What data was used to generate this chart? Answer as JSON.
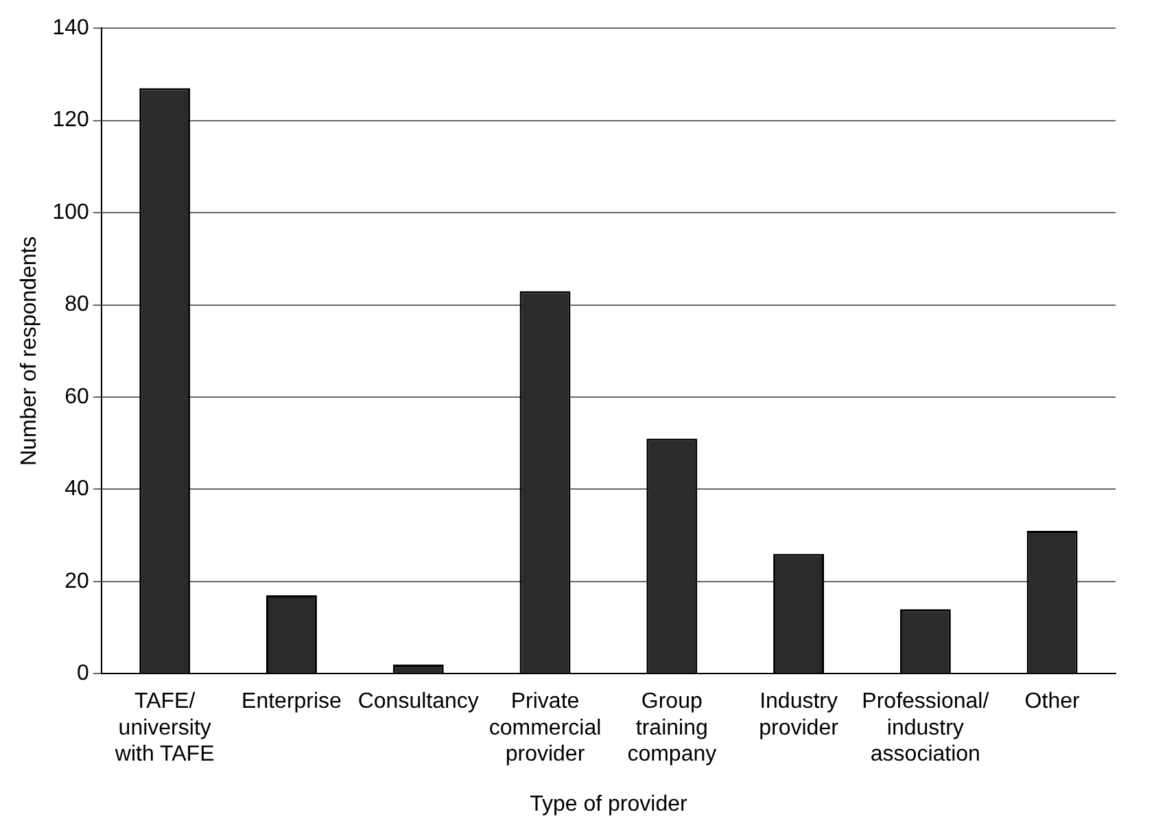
{
  "chart_data": {
    "type": "bar",
    "xlabel": "Type of provider",
    "ylabel": "Number of respondents",
    "categories": [
      "TAFE/ university with TAFE",
      "Enterprise",
      "Consultancy",
      "Private commercial provider",
      "Group training company",
      "Industry provider",
      "Professional/ industry association",
      "Other"
    ],
    "values": [
      127,
      17,
      2,
      83,
      51,
      26,
      14,
      31
    ],
    "color": "#2b2b2b",
    "ylim": [
      0,
      140
    ],
    "yticks": [
      0,
      20,
      40,
      60,
      80,
      100,
      120,
      140
    ],
    "grid": "y"
  }
}
